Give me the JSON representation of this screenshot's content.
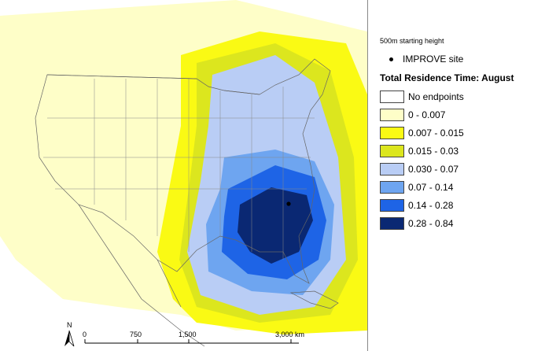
{
  "map": {
    "improve_site_marker": "dot-icon",
    "north_label": "N",
    "scale_bar": {
      "ticks": [
        "0",
        "750",
        "1,500",
        "3,000 km"
      ]
    }
  },
  "legend": {
    "height_label": "500m starting height",
    "improve_label": "IMPROVE site",
    "title": "Total Residence Time: August",
    "classes": [
      {
        "label": "No endpoints",
        "color": "#ffffff"
      },
      {
        "label": "0 - 0.007",
        "color": "#fefec8"
      },
      {
        "label": "0.007 - 0.015",
        "color": "#fafa14"
      },
      {
        "label": "0.015 - 0.03",
        "color": "#dce61e"
      },
      {
        "label": "0.030 - 0.07",
        "color": "#b9cdf5"
      },
      {
        "label": "0.07 - 0.14",
        "color": "#6ea5f0"
      },
      {
        "label": "0.14 - 0.28",
        "color": "#1e64e6"
      },
      {
        "label": "0.28 - 0.84",
        "color": "#0a2873"
      }
    ]
  }
}
